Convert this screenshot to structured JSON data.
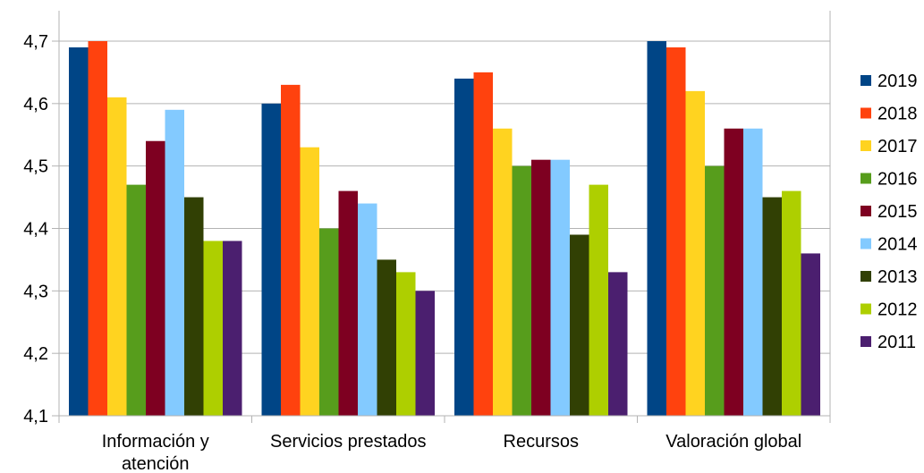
{
  "chart_data": {
    "type": "bar",
    "title": "",
    "xlabel": "",
    "ylabel": "",
    "ylim": [
      4.1,
      4.7
    ],
    "y_ticks": [
      "4,1",
      "4,2",
      "4,3",
      "4,4",
      "4,5",
      "4,6",
      "4,7"
    ],
    "grid": "horizontal",
    "legend_position": "right",
    "categories": [
      [
        "Información y",
        "atención"
      ],
      [
        "Servicios prestados"
      ],
      [
        "Recursos"
      ],
      [
        "Valoración global"
      ]
    ],
    "series": [
      {
        "name": "2019",
        "color": "#004586",
        "values": [
          4.69,
          4.6,
          4.64,
          4.7
        ]
      },
      {
        "name": "2018",
        "color": "#ff420e",
        "values": [
          4.7,
          4.63,
          4.65,
          4.69
        ]
      },
      {
        "name": "2017",
        "color": "#ffd320",
        "values": [
          4.61,
          4.53,
          4.56,
          4.62
        ]
      },
      {
        "name": "2016",
        "color": "#579d1c",
        "values": [
          4.47,
          4.4,
          4.5,
          4.5
        ]
      },
      {
        "name": "2015",
        "color": "#7e0021",
        "values": [
          4.54,
          4.46,
          4.51,
          4.56
        ]
      },
      {
        "name": "2014",
        "color": "#83caff",
        "values": [
          4.59,
          4.44,
          4.51,
          4.56
        ]
      },
      {
        "name": "2013",
        "color": "#314004",
        "values": [
          4.45,
          4.35,
          4.39,
          4.45
        ]
      },
      {
        "name": "2012",
        "color": "#aecf00",
        "values": [
          4.38,
          4.33,
          4.47,
          4.46
        ]
      },
      {
        "name": "2011",
        "color": "#4b1f6f",
        "values": [
          4.38,
          4.3,
          4.33,
          4.36
        ]
      }
    ]
  }
}
